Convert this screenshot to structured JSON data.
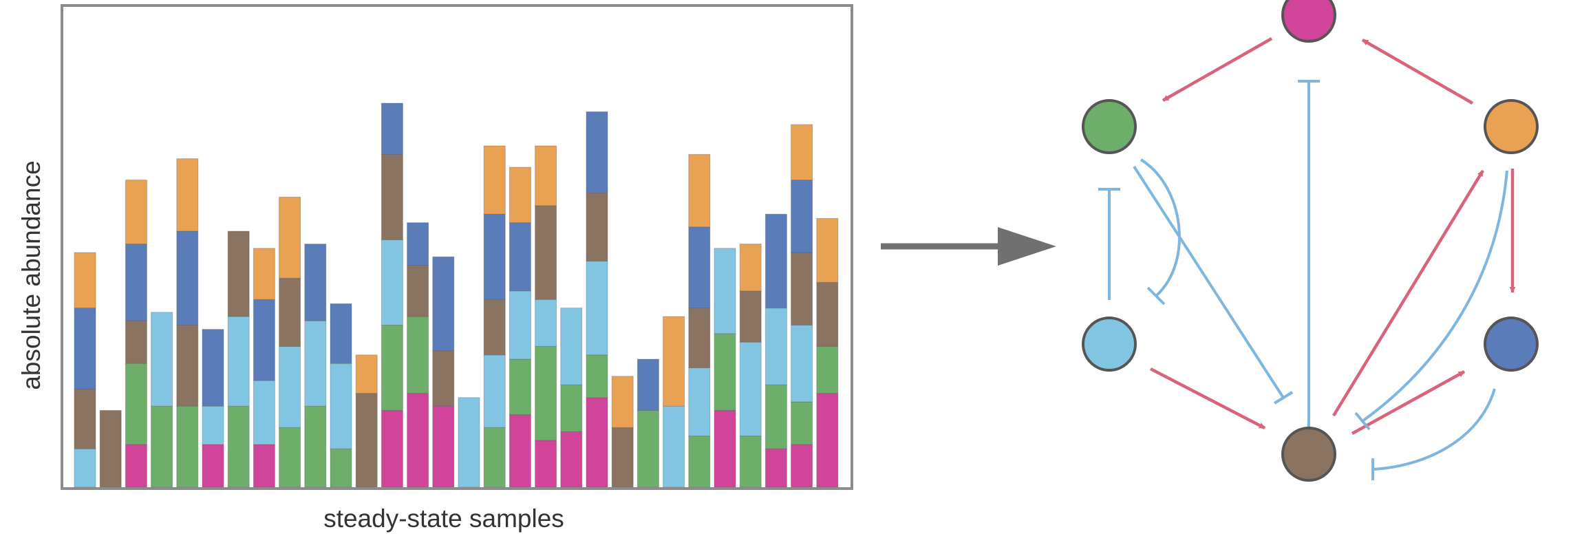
{
  "chart_data": {
    "type": "bar",
    "stacked": true,
    "xlabel": "steady-state samples",
    "ylabel": "absolute abundance",
    "ylim": [
      0,
      1
    ],
    "series_order": [
      "pink",
      "green",
      "light-blue",
      "brown",
      "blue",
      "orange"
    ],
    "colors": {
      "pink": "#D0449A",
      "green": "#6DAE6A",
      "light-blue": "#82C5E3",
      "brown": "#8A7461",
      "blue": "#5A7CB9",
      "orange": "#E9A154"
    },
    "bars": [
      {
        "light-blue": 0.09,
        "brown": 0.14,
        "blue": 0.19,
        "orange": 0.13
      },
      {
        "brown": 0.18
      },
      {
        "pink": 0.1,
        "green": 0.19,
        "brown": 0.1,
        "blue": 0.18,
        "orange": 0.15
      },
      {
        "green": 0.19,
        "light-blue": 0.22
      },
      {
        "green": 0.19,
        "brown": 0.19,
        "blue": 0.22,
        "orange": 0.17
      },
      {
        "pink": 0.1,
        "light-blue": 0.09,
        "blue": 0.18
      },
      {
        "green": 0.19,
        "light-blue": 0.21,
        "brown": 0.2
      },
      {
        "pink": 0.1,
        "light-blue": 0.15,
        "blue": 0.19,
        "orange": 0.12
      },
      {
        "green": 0.14,
        "light-blue": 0.19,
        "brown": 0.16,
        "orange": 0.19
      },
      {
        "green": 0.19,
        "light-blue": 0.2,
        "blue": 0.18
      },
      {
        "green": 0.09,
        "light-blue": 0.2,
        "blue": 0.14
      },
      {
        "brown": 0.22,
        "orange": 0.09
      },
      {
        "pink": 0.18,
        "green": 0.2,
        "light-blue": 0.2,
        "brown": 0.2,
        "blue": 0.12
      },
      {
        "pink": 0.22,
        "green": 0.18,
        "brown": 0.12,
        "blue": 0.1
      },
      {
        "pink": 0.19,
        "brown": 0.13,
        "blue": 0.22
      },
      {
        "light-blue": 0.21
      },
      {
        "green": 0.14,
        "light-blue": 0.17,
        "brown": 0.13,
        "blue": 0.2,
        "orange": 0.16
      },
      {
        "pink": 0.17,
        "green": 0.13,
        "light-blue": 0.16,
        "blue": 0.16,
        "orange": 0.13
      },
      {
        "pink": 0.11,
        "green": 0.22,
        "light-blue": 0.11,
        "brown": 0.22,
        "orange": 0.14
      },
      {
        "pink": 0.13,
        "green": 0.11,
        "light-blue": 0.18
      },
      {
        "pink": 0.21,
        "green": 0.1,
        "light-blue": 0.22,
        "brown": 0.16,
        "blue": 0.19
      },
      {
        "brown": 0.14,
        "orange": 0.12
      },
      {
        "green": 0.18,
        "blue": 0.12
      },
      {
        "light-blue": 0.19,
        "orange": 0.21
      },
      {
        "green": 0.12,
        "light-blue": 0.16,
        "brown": 0.14,
        "blue": 0.19,
        "orange": 0.17
      },
      {
        "pink": 0.18,
        "green": 0.18,
        "light-blue": 0.2
      },
      {
        "green": 0.12,
        "light-blue": 0.22,
        "brown": 0.12,
        "orange": 0.11
      },
      {
        "pink": 0.09,
        "green": 0.15,
        "light-blue": 0.18,
        "blue": 0.22
      },
      {
        "pink": 0.1,
        "green": 0.1,
        "light-blue": 0.18,
        "brown": 0.17,
        "blue": 0.17,
        "orange": 0.13
      },
      {
        "pink": 0.22,
        "green": 0.11,
        "brown": 0.15,
        "orange": 0.15
      }
    ]
  },
  "network": {
    "nodes": [
      {
        "id": "pink",
        "color": "#D0449A"
      },
      {
        "id": "green",
        "color": "#6DAE6A"
      },
      {
        "id": "orange",
        "color": "#E9A154"
      },
      {
        "id": "light-blue",
        "color": "#82C5E3"
      },
      {
        "id": "blue",
        "color": "#5A7CB9"
      },
      {
        "id": "brown",
        "color": "#8A7461"
      }
    ],
    "edge_colors": {
      "activation": "#D9637A",
      "inhibition": "#7FB6DE"
    },
    "edges": [
      {
        "from": "pink",
        "to": "green",
        "type": "activation"
      },
      {
        "from": "orange",
        "to": "pink",
        "type": "activation"
      },
      {
        "from": "orange",
        "to": "blue",
        "type": "activation"
      },
      {
        "from": "light-blue",
        "to": "brown",
        "type": "activation"
      },
      {
        "from": "brown",
        "to": "orange",
        "type": "activation"
      },
      {
        "from": "brown",
        "to": "blue",
        "type": "activation"
      },
      {
        "from": "brown",
        "to": "pink",
        "type": "inhibition"
      },
      {
        "from": "light-blue",
        "to": "green",
        "type": "inhibition"
      },
      {
        "from": "green",
        "to": "light-blue",
        "type": "inhibition"
      },
      {
        "from": "green",
        "to": "brown",
        "type": "inhibition"
      },
      {
        "from": "orange",
        "to": "brown",
        "type": "inhibition"
      },
      {
        "from": "blue",
        "to": "brown",
        "type": "inhibition"
      }
    ]
  }
}
